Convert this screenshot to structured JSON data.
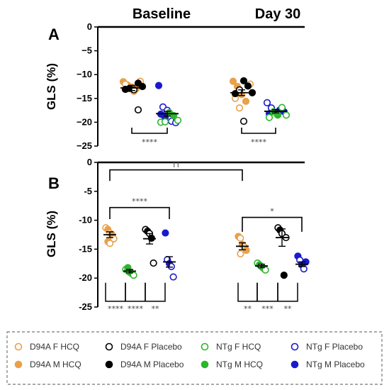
{
  "figure": {
    "col_titles": [
      "Baseline",
      "Day 30"
    ],
    "colors": {
      "D94A": "#E9A04A",
      "D94A_Placebo": "#000000",
      "NTg_HCQ": "#2DB52D",
      "NTg_Placebo": "#1A1ACC",
      "axis": "#000000",
      "bracket": "#444444"
    }
  },
  "chart_data": [
    {
      "panel": "A",
      "type": "scatter",
      "ylabel": "GLS (%)",
      "ylim": [
        -25,
        0
      ],
      "yticks": [
        "0",
        "−5",
        "−10",
        "−15",
        "−20",
        "−25"
      ],
      "groups": [
        {
          "name": "Baseline D94A",
          "mean": -12.8,
          "sem": 0.55,
          "points": [
            {
              "series": "D94A M HCQ",
              "y": -11.5
            },
            {
              "series": "D94A M HCQ",
              "y": -12.2
            },
            {
              "series": "D94A M HCQ",
              "y": -12.6
            },
            {
              "series": "D94A M HCQ",
              "y": -13.0
            },
            {
              "series": "D94A F HCQ",
              "y": -11.4
            },
            {
              "series": "D94A F HCQ",
              "y": -12.0
            },
            {
              "series": "D94A F HCQ",
              "y": -12.8
            },
            {
              "series": "D94A F HCQ",
              "y": -13.5
            },
            {
              "series": "D94A M Placebo",
              "y": -11.8
            },
            {
              "series": "D94A M Placebo",
              "y": -12.5
            },
            {
              "series": "D94A M Placebo",
              "y": -13.1
            },
            {
              "series": "D94A M Placebo",
              "y": -12.9
            },
            {
              "series": "D94A F Placebo",
              "y": -13.2
            },
            {
              "series": "D94A F Placebo",
              "y": -17.4
            }
          ]
        },
        {
          "name": "Baseline NTg",
          "mean": -18.2,
          "sem": 0.5,
          "points": [
            {
              "series": "NTg M Placebo",
              "y": -12.3
            },
            {
              "series": "NTg F Placebo",
              "y": -16.8
            },
            {
              "series": "NTg F Placebo",
              "y": -17.5
            },
            {
              "series": "NTg F Placebo",
              "y": -19.8
            },
            {
              "series": "NTg F Placebo",
              "y": -20.1
            },
            {
              "series": "NTg M Placebo",
              "y": -18.3
            },
            {
              "series": "NTg M Placebo",
              "y": -19.0
            },
            {
              "series": "NTg M HCQ",
              "y": -18.0
            },
            {
              "series": "NTg M HCQ",
              "y": -18.6
            },
            {
              "series": "NTg F HCQ",
              "y": -19.6
            },
            {
              "series": "NTg F HCQ",
              "y": -20.0
            },
            {
              "series": "NTg F HCQ",
              "y": -19.9
            }
          ]
        },
        {
          "name": "Day 30 D94A",
          "mean": -13.8,
          "sem": 0.6,
          "points": [
            {
              "series": "D94A M HCQ",
              "y": -11.4
            },
            {
              "series": "D94A M HCQ",
              "y": -12.5
            },
            {
              "series": "D94A M HCQ",
              "y": -14.2
            },
            {
              "series": "D94A M HCQ",
              "y": -15.6
            },
            {
              "series": "D94A F HCQ",
              "y": -12.0
            },
            {
              "series": "D94A F HCQ",
              "y": -15.0
            },
            {
              "series": "D94A F HCQ",
              "y": -17.0
            },
            {
              "series": "D94A M Placebo",
              "y": -11.3
            },
            {
              "series": "D94A M Placebo",
              "y": -12.4
            },
            {
              "series": "D94A M Placebo",
              "y": -13.8
            },
            {
              "series": "D94A M Placebo",
              "y": -14.0
            },
            {
              "series": "D94A F Placebo",
              "y": -13.2
            },
            {
              "series": "D94A F Placebo",
              "y": -19.8
            }
          ]
        },
        {
          "name": "Day 30 NTg",
          "mean": -17.7,
          "sem": 0.35,
          "points": [
            {
              "series": "NTg F Placebo",
              "y": -15.9
            },
            {
              "series": "NTg F Placebo",
              "y": -17.0
            },
            {
              "series": "NTg F Placebo",
              "y": -17.9
            },
            {
              "series": "NTg M Placebo",
              "y": -17.4
            },
            {
              "series": "NTg M Placebo",
              "y": -17.8
            },
            {
              "series": "NTg M Placebo",
              "y": -18.2
            },
            {
              "series": "NTg M HCQ",
              "y": -17.8
            },
            {
              "series": "NTg M HCQ",
              "y": -18.5
            },
            {
              "series": "NTg F HCQ",
              "y": -16.9
            },
            {
              "series": "NTg F HCQ",
              "y": -18.5
            },
            {
              "series": "NTg F HCQ",
              "y": -19.0
            }
          ]
        }
      ],
      "significance": [
        {
          "label": "****",
          "between": [
            "Baseline D94A",
            "Baseline NTg"
          ]
        },
        {
          "label": "****",
          "between": [
            "Day 30 D94A",
            "Day 30 NTg"
          ]
        }
      ]
    },
    {
      "panel": "B",
      "type": "scatter",
      "ylabel": "GLS (%)",
      "ylim": [
        -25,
        0
      ],
      "yticks": [
        "0",
        "-5",
        "-10",
        "-15",
        "-20",
        "-25"
      ],
      "groups": [
        {
          "name": "Baseline D94A HCQ",
          "mean": -12.5,
          "sem": 0.5,
          "points": [
            {
              "series": "D94A F HCQ",
              "y": -11.3
            },
            {
              "series": "D94A M HCQ",
              "y": -11.6
            },
            {
              "series": "D94A F HCQ",
              "y": -12.2
            },
            {
              "series": "D94A M HCQ",
              "y": -12.4
            },
            {
              "series": "D94A F HCQ",
              "y": -13.2
            },
            {
              "series": "D94A M HCQ",
              "y": -13.7
            },
            {
              "series": "D94A F HCQ",
              "y": -14.0
            }
          ]
        },
        {
          "name": "Baseline NTg HCQ",
          "mean": -18.8,
          "sem": 0.3,
          "points": [
            {
              "series": "NTg F HCQ",
              "y": -18.5
            },
            {
              "series": "NTg M HCQ",
              "y": -18.7
            },
            {
              "series": "NTg F HCQ",
              "y": -19.0
            },
            {
              "series": "NTg M HCQ",
              "y": -19.2
            },
            {
              "series": "NTg F HCQ",
              "y": -19.5
            },
            {
              "series": "NTg M HCQ",
              "y": -18.2
            }
          ]
        },
        {
          "name": "Baseline D94A Placebo",
          "mean": -13.2,
          "sem": 0.9,
          "points": [
            {
              "series": "D94A F Placebo",
              "y": -11.6
            },
            {
              "series": "D94A M Placebo",
              "y": -11.9
            },
            {
              "series": "D94A F Placebo",
              "y": -12.3
            },
            {
              "series": "D94A M Placebo",
              "y": -13.1
            },
            {
              "series": "D94A F Placebo",
              "y": -17.4
            }
          ]
        },
        {
          "name": "Baseline NTg Placebo",
          "mean": -17.2,
          "sem": 0.9,
          "points": [
            {
              "series": "NTg M Placebo",
              "y": -12.2
            },
            {
              "series": "NTg F Placebo",
              "y": -16.8
            },
            {
              "series": "NTg M Placebo",
              "y": -17.5
            },
            {
              "series": "NTg F Placebo",
              "y": -18.0
            },
            {
              "series": "NTg F Placebo",
              "y": -19.8
            }
          ]
        },
        {
          "name": "Day 30 D94A HCQ",
          "mean": -14.5,
          "sem": 0.6,
          "points": [
            {
              "series": "D94A M HCQ",
              "y": -12.8
            },
            {
              "series": "D94A F HCQ",
              "y": -13.1
            },
            {
              "series": "D94A M HCQ",
              "y": -14.2
            },
            {
              "series": "D94A F HCQ",
              "y": -14.6
            },
            {
              "series": "D94A M HCQ",
              "y": -15.2
            },
            {
              "series": "D94A F HCQ",
              "y": -15.8
            }
          ]
        },
        {
          "name": "Day 30 NTg HCQ",
          "mean": -17.9,
          "sem": 0.3,
          "points": [
            {
              "series": "NTg F HCQ",
              "y": -17.4
            },
            {
              "series": "NTg M HCQ",
              "y": -17.7
            },
            {
              "series": "NTg F HCQ",
              "y": -18.0
            },
            {
              "series": "NTg M HCQ",
              "y": -18.3
            },
            {
              "series": "NTg F HCQ",
              "y": -18.6
            }
          ]
        },
        {
          "name": "Day 30 D94A Placebo",
          "mean": -13.0,
          "sem": 1.5,
          "points": [
            {
              "series": "D94A F Placebo",
              "y": -11.3
            },
            {
              "series": "D94A M Placebo",
              "y": -11.7
            },
            {
              "series": "D94A F Placebo",
              "y": -12.3
            },
            {
              "series": "D94A M Placebo",
              "y": -19.5
            },
            {
              "series": "D94A F Placebo",
              "y": -13.0
            }
          ]
        },
        {
          "name": "Day 30 NTg Placebo",
          "mean": -17.6,
          "sem": 0.4,
          "points": [
            {
              "series": "NTg M Placebo",
              "y": -16.2
            },
            {
              "series": "NTg F Placebo",
              "y": -16.9
            },
            {
              "series": "NTg M Placebo",
              "y": -17.7
            },
            {
              "series": "NTg F Placebo",
              "y": -18.4
            },
            {
              "series": "NTg M Placebo",
              "y": -17.2
            }
          ]
        }
      ],
      "significance": [
        {
          "label": "††",
          "between": [
            "Baseline D94A HCQ",
            "Day 30 D94A HCQ"
          ]
        },
        {
          "label": "****",
          "between": [
            "Baseline D94A HCQ",
            "Baseline NTg Placebo"
          ]
        },
        {
          "label": "*",
          "between": [
            "Day 30 D94A HCQ",
            "Day 30 NTg Placebo"
          ]
        },
        {
          "label": "****",
          "group": "Baseline D94A HCQ"
        },
        {
          "label": "****",
          "group": "Baseline NTg HCQ"
        },
        {
          "label": "**",
          "group": "Baseline D94A Placebo"
        },
        {
          "label": "**",
          "group": "Day 30 D94A HCQ"
        },
        {
          "label": "***",
          "group": "Day 30 NTg HCQ"
        },
        {
          "label": "**",
          "group": "Day 30 D94A Placebo"
        }
      ]
    }
  ],
  "legend": [
    {
      "label": "D94A F HCQ",
      "color": "#E9A04A",
      "filled": false
    },
    {
      "label": "D94A F Placebo",
      "color": "#000000",
      "filled": false
    },
    {
      "label": "NTg F HCQ",
      "color": "#2DB52D",
      "filled": false
    },
    {
      "label": "NTg F Placebo",
      "color": "#1A1ACC",
      "filled": false
    },
    {
      "label": "D94A M HCQ",
      "color": "#E9A04A",
      "filled": true
    },
    {
      "label": "D94A M Placebo",
      "color": "#000000",
      "filled": true
    },
    {
      "label": "NTg M HCQ",
      "color": "#2DB52D",
      "filled": true
    },
    {
      "label": "NTg M Placebo",
      "color": "#1A1ACC",
      "filled": true
    }
  ]
}
